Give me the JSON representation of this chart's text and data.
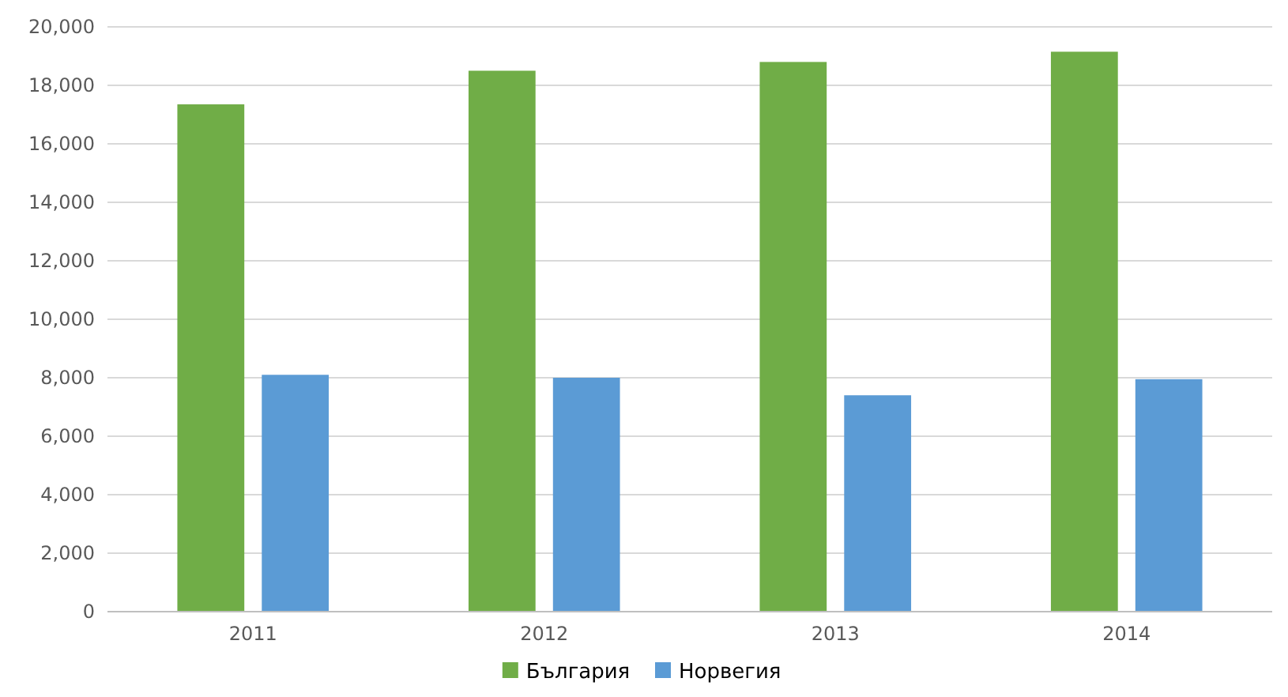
{
  "chart_data": {
    "type": "bar",
    "categories": [
      "2011",
      "2012",
      "2013",
      "2014"
    ],
    "series": [
      {
        "name": "България",
        "color": "#70ad47",
        "values": [
          17350,
          18500,
          18800,
          19150
        ]
      },
      {
        "name": "Норвегия",
        "color": "#5b9bd5",
        "values": [
          8100,
          8000,
          7400,
          7950
        ]
      }
    ],
    "ylim": [
      0,
      20000
    ],
    "yticks": [
      {
        "value": 0,
        "label": "0"
      },
      {
        "value": 2000,
        "label": "2,000"
      },
      {
        "value": 4000,
        "label": "4,000"
      },
      {
        "value": 6000,
        "label": "6,000"
      },
      {
        "value": 8000,
        "label": "8,000"
      },
      {
        "value": 10000,
        "label": "10,000"
      },
      {
        "value": 12000,
        "label": "12,000"
      },
      {
        "value": 14000,
        "label": "14,000"
      },
      {
        "value": 16000,
        "label": "16,000"
      },
      {
        "value": 18000,
        "label": "18,000"
      },
      {
        "value": 20000,
        "label": "20,000"
      }
    ],
    "grid": "y",
    "legend": "bottom"
  }
}
